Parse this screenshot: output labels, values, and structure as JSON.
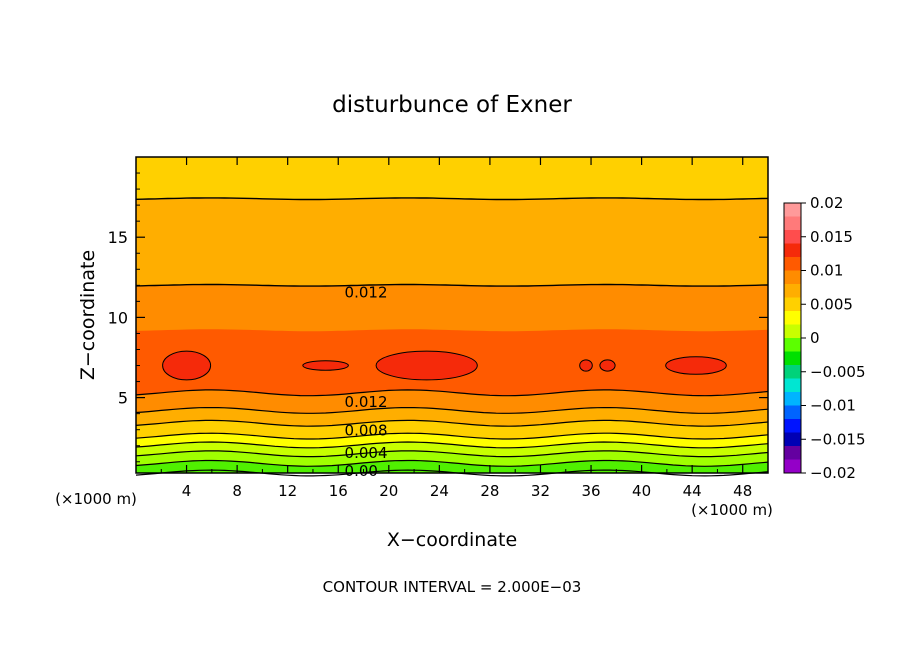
{
  "chart_data": {
    "type": "heatmap",
    "title": "disturbunce of Exner",
    "xlabel": "X−coordinate",
    "ylabel": "Z−coordinate",
    "x_unit": "(×1000 m)",
    "y_unit": "(×1000 m)",
    "footer": "CONTOUR INTERVAL = 2.000E−03",
    "xlim": [
      0,
      50
    ],
    "ylim": [
      0.3,
      20
    ],
    "x_ticks": [
      "4",
      "8",
      "12",
      "16",
      "20",
      "24",
      "28",
      "32",
      "36",
      "40",
      "44",
      "48"
    ],
    "y_ticks": [
      "5",
      "10",
      "15"
    ],
    "contour_interval": 0.002,
    "contour_labels": [
      {
        "text": "0.012",
        "x": 16.5,
        "z": 11.6
      },
      {
        "text": "0.012",
        "x": 16.5,
        "z": 4.8
      },
      {
        "text": "0.008",
        "x": 16.5,
        "z": 3.0
      },
      {
        "text": "0.004",
        "x": 16.5,
        "z": 1.6
      },
      {
        "text": "0.00",
        "x": 16.5,
        "z": 0.5
      }
    ],
    "vertical_profile": [
      {
        "z": 0.3,
        "value": 0.0
      },
      {
        "z": 1.5,
        "value": 0.004
      },
      {
        "z": 2.6,
        "value": 0.008
      },
      {
        "z": 4.2,
        "value": 0.012
      },
      {
        "z": 5.3,
        "value": 0.014
      },
      {
        "z": 6.7,
        "value": 0.0155
      },
      {
        "z": 8.5,
        "value": 0.0145
      },
      {
        "z": 12.0,
        "value": 0.012
      },
      {
        "z": 14.7,
        "value": 0.011
      },
      {
        "z": 17.4,
        "value": 0.01
      },
      {
        "z": 20.0,
        "value": 0.009
      }
    ],
    "colorbar": {
      "ticks": [
        "0.02",
        "0.015",
        "0.01",
        "0.005",
        "0",
        "−0.005",
        "−0.01",
        "−0.015",
        "−0.02"
      ],
      "colors_top_to_bottom": [
        "#ff9a9a",
        "#ff7a7a",
        "#ff4d4d",
        "#f52a0a",
        "#ff5a00",
        "#ff8c00",
        "#ffae00",
        "#ffd000",
        "#ffff00",
        "#c8ff00",
        "#5cff00",
        "#00e000",
        "#00d27a",
        "#00e6d2",
        "#00b4ff",
        "#0064ff",
        "#0014ff",
        "#0000b4",
        "#6400a0",
        "#9400c8"
      ]
    },
    "colors": {
      "band_0_000": "#50f000",
      "band_0_002": "#a0ff00",
      "band_0_004": "#c8ff00",
      "band_0_006": "#ffff00",
      "band_0_008": "#ffd000",
      "band_0_010": "#ffae00",
      "band_0_012": "#ff8c00",
      "band_0_014": "#ff5a00",
      "band_0_016": "#f52a0a"
    }
  }
}
